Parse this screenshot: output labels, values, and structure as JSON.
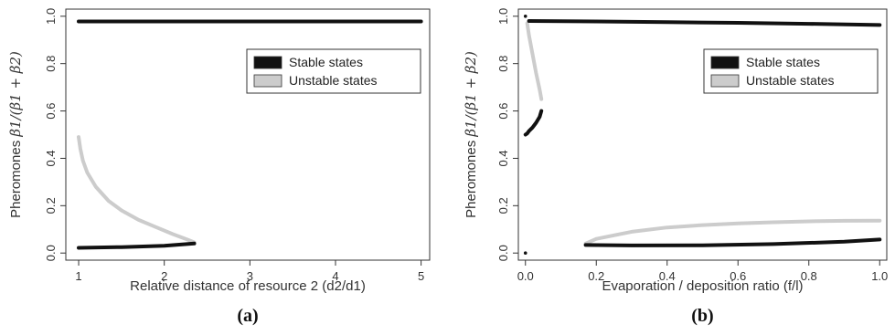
{
  "colors": {
    "stable": "#111111",
    "unstable": "#cccccc"
  },
  "chart_data": [
    {
      "type": "line",
      "panel_label": "(a)",
      "xlabel": "Relative distance of resource 2 (d2/d1)",
      "ylabel_text": "Pheromones",
      "ylabel_math": "β1/(β1 + β2)",
      "xlim": [
        0.85,
        5.1
      ],
      "ylim": [
        -0.03,
        1.03
      ],
      "xticks": [
        1,
        2,
        3,
        4,
        5
      ],
      "yticks": [
        0.0,
        0.2,
        0.4,
        0.6,
        0.8,
        1.0
      ],
      "xtick_labels": [
        "1",
        "2",
        "3",
        "4",
        "5"
      ],
      "ytick_labels": [
        "0.0",
        "0.2",
        "0.4",
        "0.6",
        "0.8",
        "1.0"
      ],
      "legend": {
        "position": "top-right",
        "entries": [
          "Stable states",
          "Unstable states"
        ]
      },
      "series": [
        {
          "name": "Stable states",
          "x": [
            1,
            5
          ],
          "y": [
            0.978,
            0.978
          ]
        },
        {
          "name": "Stable states",
          "x": [
            1,
            1.5,
            2,
            2.35
          ],
          "y": [
            0.022,
            0.025,
            0.031,
            0.04
          ]
        },
        {
          "name": "Unstable states",
          "x": [
            1,
            1.02,
            1.05,
            1.1,
            1.2,
            1.35,
            1.5,
            1.7,
            1.9,
            2.1,
            2.25,
            2.35
          ],
          "y": [
            0.49,
            0.44,
            0.39,
            0.34,
            0.28,
            0.22,
            0.18,
            0.14,
            0.11,
            0.08,
            0.06,
            0.045
          ]
        }
      ]
    },
    {
      "type": "line",
      "panel_label": "(b)",
      "xlabel": "Evaporation / deposition ratio (f/l)",
      "ylabel_text": "Pheromones",
      "ylabel_math": "β1/(β1 + β2)",
      "xlim": [
        -0.02,
        1.02
      ],
      "ylim": [
        -0.03,
        1.03
      ],
      "xticks": [
        0.0,
        0.2,
        0.4,
        0.6,
        0.8,
        1.0
      ],
      "yticks": [
        0.0,
        0.2,
        0.4,
        0.6,
        0.8,
        1.0
      ],
      "xtick_labels": [
        "0.0",
        "0.2",
        "0.4",
        "0.6",
        "0.8",
        "1.0"
      ],
      "ytick_labels": [
        "0.0",
        "0.2",
        "0.4",
        "0.6",
        "0.8",
        "1.0"
      ],
      "legend": {
        "position": "top-right",
        "entries": [
          "Stable states",
          "Unstable states"
        ]
      },
      "series": [
        {
          "name": "Stable states",
          "x": [
            0.01,
            0.2,
            0.4,
            0.6,
            0.8,
            1.0
          ],
          "y": [
            0.98,
            0.978,
            0.975,
            0.972,
            0.968,
            0.963
          ]
        },
        {
          "name": "Stable states",
          "x": [
            0.0,
            0.005,
            0.01,
            0.02,
            0.03,
            0.04,
            0.045
          ],
          "y": [
            0.5,
            0.505,
            0.515,
            0.53,
            0.55,
            0.575,
            0.6
          ]
        },
        {
          "name": "Stable states",
          "x": [
            0.17,
            0.3,
            0.5,
            0.7,
            0.9,
            1.0
          ],
          "y": [
            0.034,
            0.032,
            0.033,
            0.038,
            0.048,
            0.057
          ]
        },
        {
          "name": "Unstable states",
          "x": [
            0.005,
            0.01,
            0.02,
            0.03,
            0.04,
            0.045
          ],
          "y": [
            0.97,
            0.92,
            0.84,
            0.76,
            0.69,
            0.65
          ]
        },
        {
          "name": "Unstable states",
          "x": [
            0.17,
            0.2,
            0.3,
            0.4,
            0.5,
            0.6,
            0.7,
            0.8,
            0.9,
            1.0
          ],
          "y": [
            0.04,
            0.06,
            0.09,
            0.108,
            0.118,
            0.125,
            0.13,
            0.134,
            0.136,
            0.137
          ]
        }
      ],
      "isolated_points": [
        {
          "x": 0.0,
          "y": 1.0
        },
        {
          "x": 0.0,
          "y": 0.0
        }
      ]
    }
  ]
}
